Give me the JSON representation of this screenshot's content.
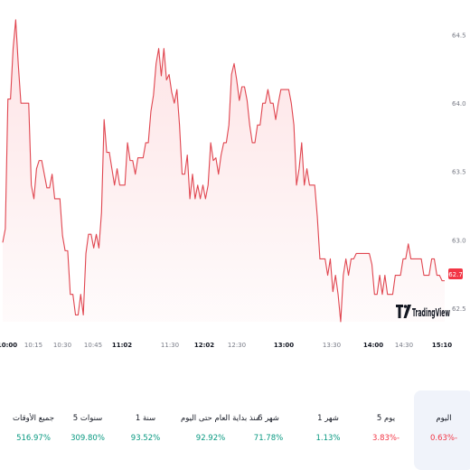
{
  "chart_data": {
    "type": "area",
    "title": "",
    "xlabel": "",
    "ylabel": "",
    "ylim": [
      62.36,
      64.57
    ],
    "y_ticks": [
      "64.5",
      "64.0",
      "63.5",
      "63.0",
      "62.5"
    ],
    "x_ticks": [
      {
        "label": "10:00",
        "bold": true
      },
      {
        "label": "10:15",
        "bold": false
      },
      {
        "label": "10:30",
        "bold": false
      },
      {
        "label": "10:45",
        "bold": false
      },
      {
        "label": "11:02",
        "bold": true
      },
      {
        "label": "11:30",
        "bold": false
      },
      {
        "label": "12:02",
        "bold": true
      },
      {
        "label": "12:30",
        "bold": false
      },
      {
        "label": "13:00",
        "bold": true
      },
      {
        "label": "13:30",
        "bold": false
      },
      {
        "label": "14:00",
        "bold": true
      },
      {
        "label": "14:30",
        "bold": false
      },
      {
        "label": "15:10",
        "bold": true
      }
    ],
    "last_value_label": "62.7",
    "line_color": "#e0454f",
    "fill_color": "#fde3e5",
    "values": [
      62.98,
      63.08,
      64.03,
      64.03,
      64.4,
      64.61,
      64.28,
      64.0,
      64.0,
      64.0,
      64.0,
      63.4,
      63.3,
      63.52,
      63.58,
      63.58,
      63.48,
      63.38,
      63.38,
      63.48,
      63.3,
      63.3,
      63.3,
      63.03,
      62.92,
      62.92,
      62.6,
      62.6,
      62.45,
      62.45,
      62.6,
      62.45,
      62.9,
      63.04,
      63.04,
      62.94,
      63.04,
      62.94,
      63.2,
      63.88,
      63.64,
      63.64,
      63.52,
      63.4,
      63.52,
      63.4,
      63.4,
      63.4,
      63.71,
      63.58,
      63.58,
      63.48,
      63.6,
      63.6,
      63.6,
      63.71,
      63.71,
      63.94,
      64.06,
      64.29,
      64.4,
      64.2,
      64.4,
      64.17,
      64.21,
      64.08,
      64.0,
      64.1,
      63.84,
      63.48,
      63.48,
      63.62,
      63.3,
      63.48,
      63.3,
      63.4,
      63.3,
      63.4,
      63.3,
      63.4,
      63.71,
      63.58,
      63.6,
      63.48,
      63.62,
      63.71,
      63.71,
      63.84,
      64.21,
      64.29,
      64.17,
      64.02,
      64.12,
      64.12,
      64.02,
      63.84,
      63.71,
      63.71,
      63.84,
      63.84,
      64.0,
      64.0,
      64.1,
      64.0,
      64.0,
      63.88,
      64.0,
      64.1,
      64.1,
      64.1,
      64.1,
      64.0,
      63.84,
      63.4,
      63.52,
      63.71,
      63.4,
      63.52,
      63.4,
      63.4,
      63.4,
      63.17,
      62.86,
      62.86,
      62.86,
      62.74,
      62.86,
      62.62,
      62.74,
      62.6,
      62.4,
      62.74,
      62.86,
      62.74,
      62.86,
      62.86,
      62.9,
      62.9,
      62.9,
      62.9,
      62.9,
      62.9,
      62.82,
      62.6,
      62.6,
      62.74,
      62.6,
      62.74,
      62.6,
      62.6,
      62.6,
      62.74,
      62.74,
      62.74,
      62.86,
      62.86,
      62.97,
      62.86,
      62.86,
      62.86,
      62.86,
      62.86,
      62.74,
      62.74,
      62.74,
      62.86,
      62.86,
      62.74,
      62.74,
      62.7,
      62.7
    ]
  },
  "watermark": {
    "text": "TradingView"
  },
  "periods": [
    {
      "label": "اليوم",
      "value": "0.63%-",
      "trend": "down",
      "active": true
    },
    {
      "label": "5 يوم",
      "value": "3.83%-",
      "trend": "down",
      "active": false
    },
    {
      "label": "1 شهر",
      "value": "1.13%",
      "trend": "up",
      "active": false
    },
    {
      "label": "6 شهر",
      "value": "71.78%",
      "trend": "up",
      "active": false
    },
    {
      "label": "منذ بداية العام حتى اليوم",
      "value": "92.92%",
      "trend": "up",
      "active": false
    },
    {
      "label": "1 سنة",
      "value": "93.52%",
      "trend": "up",
      "active": false
    },
    {
      "label": "5 سنوات",
      "value": "309.80%",
      "trend": "up",
      "active": false
    },
    {
      "label": "جميع الأوقات",
      "value": "516.97%",
      "trend": "up",
      "active": false
    }
  ]
}
